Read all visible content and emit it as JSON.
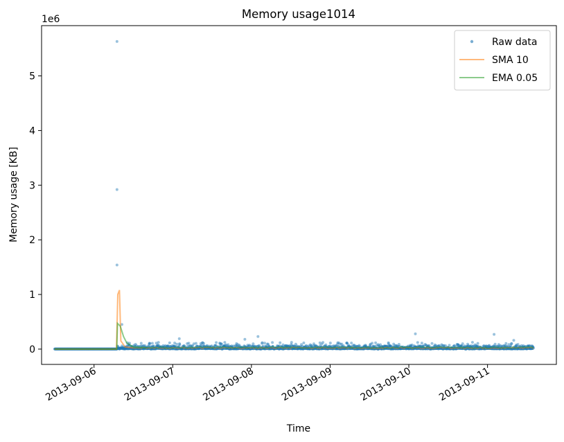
{
  "chart_data": {
    "type": "line",
    "title": "Memory usage1014",
    "xlabel": "Time",
    "ylabel": "Memory usage [KB]",
    "y_offset_label": "1e6",
    "y_scale": 1000000,
    "xlim": [
      "2013-09-05T08:00",
      "2013-09-11T21:00"
    ],
    "ylim": [
      -280000,
      5920000
    ],
    "x_ticks": [
      {
        "value": "2013-09-06",
        "label": "2013-09-06"
      },
      {
        "value": "2013-09-07",
        "label": "2013-09-07"
      },
      {
        "value": "2013-09-08",
        "label": "2013-09-08"
      },
      {
        "value": "2013-09-09",
        "label": "2013-09-09"
      },
      {
        "value": "2013-09-10",
        "label": "2013-09-10"
      },
      {
        "value": "2013-09-11",
        "label": "2013-09-11"
      }
    ],
    "y_ticks": [
      {
        "value": 0,
        "label": "0"
      },
      {
        "value": 1000000,
        "label": "1"
      },
      {
        "value": 2000000,
        "label": "2"
      },
      {
        "value": 3000000,
        "label": "3"
      },
      {
        "value": 4000000,
        "label": "4"
      },
      {
        "value": 5000000,
        "label": "5"
      }
    ],
    "grid": false,
    "legend_position": "top-right",
    "series": [
      {
        "name": "Raw data",
        "style": "points",
        "color": "#1f77b4",
        "x_range": [
          "2013-09-05T12:00",
          "2013-09-11T14:00"
        ],
        "baseline": 2000,
        "activity_start": "2013-09-06T07:00",
        "typical_spread": 70000,
        "notable_points": [
          {
            "x": "2013-09-06T07:00",
            "y": 5630000
          },
          {
            "x": "2013-09-06T07:00",
            "y": 2920000
          },
          {
            "x": "2013-09-06T07:00",
            "y": 1540000
          },
          {
            "x": "2013-09-06T08:30",
            "y": 450000
          },
          {
            "x": "2013-09-07T02:00",
            "y": 190000
          },
          {
            "x": "2013-09-07T22:00",
            "y": 180000
          },
          {
            "x": "2013-09-08T02:00",
            "y": 230000
          },
          {
            "x": "2013-09-10T02:00",
            "y": 280000
          },
          {
            "x": "2013-09-11T02:00",
            "y": 270000
          },
          {
            "x": "2013-09-11T08:00",
            "y": 160000
          }
        ]
      },
      {
        "name": "SMA 10",
        "style": "line",
        "color": "#ff7f0e",
        "points": [
          {
            "x": "2013-09-05T12:00",
            "y": 0
          },
          {
            "x": "2013-09-06T06:50",
            "y": 0
          },
          {
            "x": "2013-09-06T07:15",
            "y": 1000000
          },
          {
            "x": "2013-09-06T07:45",
            "y": 1080000
          },
          {
            "x": "2013-09-06T08:10",
            "y": 150000
          },
          {
            "x": "2013-09-06T09:30",
            "y": 40000
          },
          {
            "x": "2013-09-06T12:00",
            "y": 20000
          }
        ]
      },
      {
        "name": "EMA 0.05",
        "style": "line",
        "color": "#2ca02c",
        "points": [
          {
            "x": "2013-09-05T12:00",
            "y": 0
          },
          {
            "x": "2013-09-06T06:55",
            "y": 0
          },
          {
            "x": "2013-09-06T07:10",
            "y": 470000
          },
          {
            "x": "2013-09-06T08:00",
            "y": 420000
          },
          {
            "x": "2013-09-06T09:00",
            "y": 230000
          },
          {
            "x": "2013-09-06T10:00",
            "y": 110000
          },
          {
            "x": "2013-09-06T12:00",
            "y": 40000
          },
          {
            "x": "2013-09-06T16:00",
            "y": 25000
          }
        ]
      }
    ]
  }
}
